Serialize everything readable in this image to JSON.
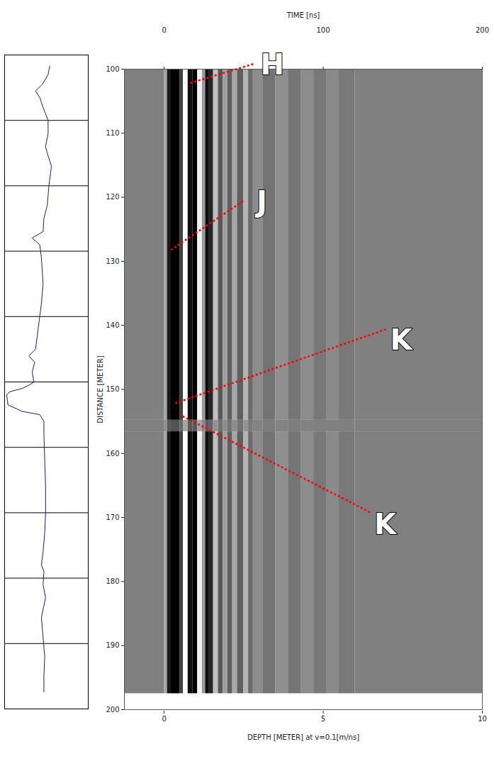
{
  "chart_data": [
    {
      "type": "heatmap",
      "x_label": "TIME [ns]",
      "y_label": "DISTANCE [METER]",
      "x2_label": "DEPTH [METER] at v=0.1[m/ns]",
      "xlim": [
        -25,
        200
      ],
      "xticks": [
        0,
        100,
        200
      ],
      "ylim": [
        100,
        200
      ],
      "yticks": [
        100,
        110,
        120,
        130,
        140,
        150,
        160,
        170,
        180,
        190,
        200
      ],
      "x2lim": [
        -1.25,
        10
      ],
      "x2ticks": [
        0,
        5,
        10
      ],
      "tick_labels": true,
      "time_bins": [
        -25,
        0,
        2,
        4,
        10,
        12,
        15,
        18,
        21,
        24,
        26,
        28,
        31,
        34,
        37,
        40,
        43,
        46,
        50,
        53,
        56,
        62,
        70,
        78,
        86,
        94,
        102,
        110,
        120,
        200
      ],
      "distance_bins": [
        100,
        154.8,
        156.6,
        197.5
      ],
      "cells": [
        [
          0,
          0.3,
          -0.8,
          -1,
          -0.5,
          1,
          -0.9,
          -1,
          0.9,
          0.2,
          -0.9,
          -0.7,
          0.5,
          -0.3,
          0.25,
          -0.25,
          0.3,
          -0.25,
          0.4,
          -0.15,
          0.1,
          -0.1,
          0.12,
          -0.08,
          0.1,
          -0.06,
          0.08,
          -0.05,
          0
        ],
        [
          0,
          0.1,
          -0.3,
          -0.35,
          -0.2,
          0.3,
          -0.3,
          -0.3,
          0.3,
          0.05,
          -0.3,
          -0.2,
          0.15,
          -0.1,
          0.1,
          -0.1,
          0.1,
          -0.1,
          0.15,
          -0.05,
          0.03,
          -0.03,
          0.03,
          -0.02,
          0.02,
          0,
          0,
          0,
          0
        ],
        [
          0,
          0.3,
          -0.8,
          -1,
          -0.5,
          1,
          -0.9,
          -1,
          0.9,
          0.2,
          -0.9,
          -0.7,
          0.5,
          -0.3,
          0.25,
          -0.25,
          0.3,
          -0.25,
          0.4,
          -0.15,
          0.1,
          -0.1,
          0.12,
          -0.08,
          0.1,
          -0.06,
          0.08,
          -0.05,
          0
        ]
      ],
      "clim": [
        -1,
        1
      ],
      "annotations": [
        {
          "text": "H",
          "x": 68,
          "y": 99.4,
          "line_from": [
            56,
            99.2
          ],
          "line_to": [
            16,
            102.2
          ],
          "color": "#ff0000",
          "line_style": "dotted"
        },
        {
          "text": "J",
          "x": 61.4,
          "y": 120.8,
          "line_from": [
            49.6,
            120.6
          ],
          "line_to": [
            4.4,
            128.2
          ],
          "color": "#ff0000",
          "line_style": "dotted"
        },
        {
          "text": "K",
          "x": 149,
          "y": 142.4,
          "line_from": [
            139.5,
            140.6
          ],
          "line_to": [
            6.6,
            152.2
          ],
          "color": "#ff0000",
          "line_style": "dotted"
        },
        {
          "text": "K",
          "x": 139,
          "y": 171.2,
          "line_from": [
            129.4,
            169.2
          ],
          "line_to": [
            10.1,
            154.0
          ],
          "color": "#ff0000",
          "line_style": "dotted"
        }
      ]
    },
    {
      "type": "line",
      "orientation": "horizontal",
      "color": "#1c1c7a",
      "tick_labels": false,
      "grid": true,
      "xlim": [
        0,
        100
      ],
      "ylim": [
        0,
        10
      ],
      "yticks": [
        0,
        1,
        2,
        3,
        4,
        5,
        6,
        7,
        8,
        9,
        10
      ],
      "y": [
        0.17,
        0.3,
        0.45,
        0.55,
        0.65,
        0.8,
        1.0,
        1.2,
        1.4,
        1.5,
        1.7,
        2.0,
        2.3,
        2.5,
        2.7,
        2.8,
        2.9,
        3.1,
        3.5,
        3.8,
        4.0,
        4.3,
        4.5,
        4.6,
        4.7,
        4.85,
        5.0,
        5.05,
        5.1,
        5.15,
        5.2,
        5.35,
        5.45,
        5.5,
        5.6,
        5.8,
        6.2,
        6.6,
        7.0,
        7.3,
        7.6,
        7.8,
        7.9,
        8.1,
        8.3,
        8.6,
        8.9,
        9.2,
        9.5,
        9.74
      ],
      "values": [
        54,
        52,
        45,
        37,
        42,
        46,
        52,
        52,
        49,
        51,
        56,
        53,
        51,
        47,
        46,
        33,
        42,
        44,
        46,
        44,
        42,
        39,
        37,
        29,
        36,
        33,
        35,
        29,
        21,
        6,
        2.5,
        4,
        21,
        42,
        47,
        47,
        48,
        49,
        49,
        48,
        46,
        44,
        47,
        46,
        49,
        44,
        46,
        48,
        47,
        47
      ]
    }
  ]
}
